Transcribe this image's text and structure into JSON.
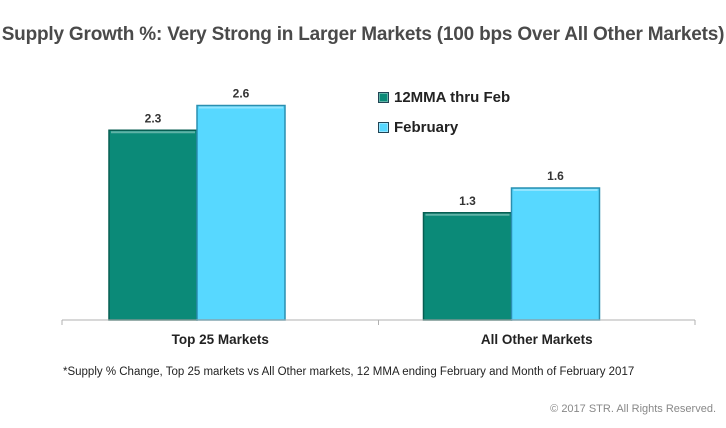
{
  "chart_data": {
    "type": "bar",
    "title": "Supply Growth %: Very Strong in Larger Markets (100 bps Over All Other Markets)",
    "categories": [
      "Top 25 Markets",
      "All Other Markets"
    ],
    "series": [
      {
        "name": "12MMA thru Feb",
        "color": "#0b8a78",
        "values": [
          2.3,
          1.3
        ]
      },
      {
        "name": "February",
        "color": "#57d8ff",
        "values": [
          2.6,
          1.6
        ]
      }
    ],
    "data_labels": [
      [
        "2.3",
        "1.3"
      ],
      [
        "2.6",
        "1.6"
      ]
    ],
    "xlabel": "",
    "ylabel": "",
    "ylim": [
      0,
      2.8
    ],
    "grid": false,
    "legend_position": "top-right",
    "footnote": "*Supply % Change, Top 25 markets vs All Other markets, 12 MMA ending February and Month of February 2017",
    "copyright": "© 2017 STR. All Rights Reserved."
  }
}
